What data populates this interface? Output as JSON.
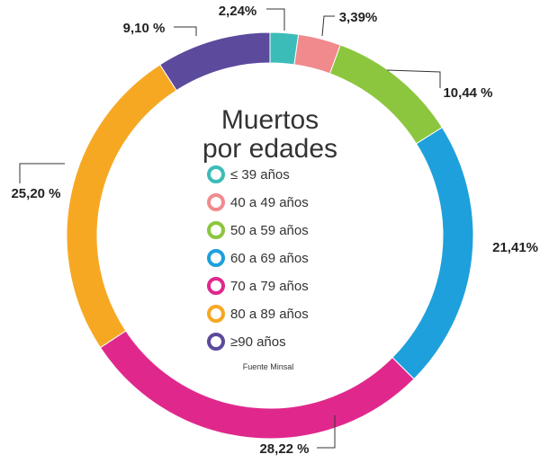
{
  "chart_data": {
    "type": "pie",
    "title_lines": [
      "Muertos",
      "por edades"
    ],
    "categories": [
      "≤ 39 años",
      "40 a 49 años",
      "50 a 59 años",
      "60 a 69 años",
      "70 a 79 años",
      "80 a 89 años",
      "≥90 años"
    ],
    "values": [
      2.24,
      3.39,
      10.44,
      21.41,
      28.22,
      25.2,
      9.1
    ],
    "value_labels": [
      "2,24%",
      "3,39%",
      "10,44 %",
      "21,41%",
      "28,22 %",
      "25,20 %",
      "9,10 %"
    ],
    "colors": [
      "#3cbcb8",
      "#f08a8c",
      "#8cc63e",
      "#1ea0dc",
      "#e0288c",
      "#f7a823",
      "#5c4a9c"
    ],
    "legend_placement": "center",
    "source": "Fuente Minsal"
  }
}
